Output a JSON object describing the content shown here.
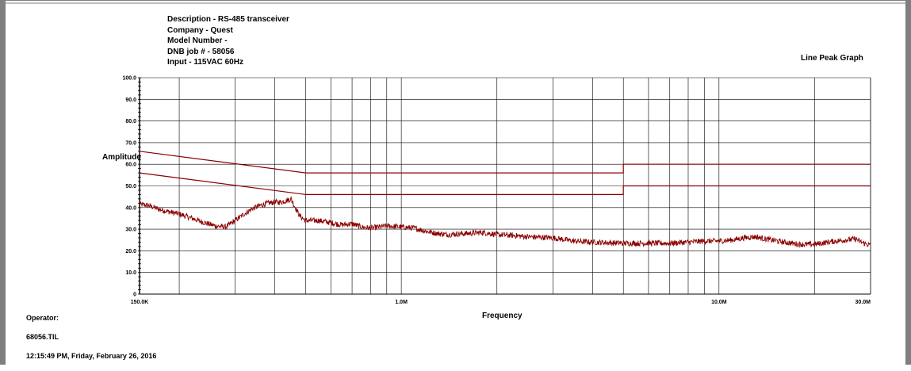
{
  "header": {
    "description": "Description - RS-485 transceiver",
    "company": "Company - Quest",
    "model": "Model Number -",
    "job": "DNB job # - 58056",
    "input": "Input - 115VAC 60Hz"
  },
  "footer": {
    "operator": "Operator:",
    "file": "68056.TIL",
    "datetime": "12:15:49 PM, Friday, February 26, 2016"
  },
  "colors": {
    "trace": "#8b0000",
    "grid": "#000000",
    "frame": "#7f7f7f"
  },
  "chart_data": {
    "type": "line",
    "title": "Line Peak Graph",
    "xlabel": "Frequency",
    "ylabel": "Amplitude",
    "x_scale": "log",
    "x_unit": "Hz",
    "xlim": [
      150000,
      30000000
    ],
    "ylim": [
      0,
      100
    ],
    "y_ticks": [
      "0",
      "10.0",
      "20.0",
      "30.0",
      "40.0",
      "50.0",
      "60.0",
      "70.0",
      "80.0",
      "90.0",
      "100.0"
    ],
    "x_tick_labels": [
      {
        "x": 150000,
        "label": "150.0K"
      },
      {
        "x": 1000000,
        "label": "1.0M"
      },
      {
        "x": 10000000,
        "label": "10.0M"
      },
      {
        "x": 30000000,
        "label": "30.0M"
      }
    ],
    "grid": true,
    "series": [
      {
        "role": "limit",
        "points": [
          [
            150000,
            66
          ],
          [
            500000,
            56
          ],
          [
            5000000,
            56
          ],
          [
            5000000,
            60
          ],
          [
            30000000,
            60
          ]
        ]
      },
      {
        "role": "limit",
        "points": [
          [
            150000,
            56
          ],
          [
            500000,
            46
          ],
          [
            5000000,
            46
          ],
          [
            5000000,
            50
          ],
          [
            30000000,
            50
          ]
        ]
      },
      {
        "role": "measurement",
        "points": [
          [
            150000,
            41.5
          ],
          [
            160000,
            41
          ],
          [
            170000,
            39.5
          ],
          [
            180000,
            38.5
          ],
          [
            200000,
            37
          ],
          [
            220000,
            35
          ],
          [
            240000,
            33
          ],
          [
            260000,
            31.5
          ],
          [
            280000,
            31
          ],
          [
            300000,
            34
          ],
          [
            320000,
            37
          ],
          [
            340000,
            39.5
          ],
          [
            360000,
            41
          ],
          [
            380000,
            42
          ],
          [
            400000,
            42.5
          ],
          [
            420000,
            42.5
          ],
          [
            440000,
            43.5
          ],
          [
            450000,
            44
          ],
          [
            460000,
            41
          ],
          [
            480000,
            36
          ],
          [
            500000,
            34
          ],
          [
            550000,
            34
          ],
          [
            600000,
            33
          ],
          [
            650000,
            32
          ],
          [
            700000,
            32.5
          ],
          [
            750000,
            31
          ],
          [
            800000,
            30.5
          ],
          [
            850000,
            31
          ],
          [
            900000,
            31.5
          ],
          [
            1000000,
            31
          ],
          [
            1100000,
            30.5
          ],
          [
            1200000,
            29
          ],
          [
            1300000,
            28
          ],
          [
            1400000,
            27.5
          ],
          [
            1600000,
            28
          ],
          [
            1800000,
            28.5
          ],
          [
            2000000,
            27.5
          ],
          [
            2300000,
            27
          ],
          [
            2500000,
            26.5
          ],
          [
            3000000,
            26
          ],
          [
            3500000,
            24.5
          ],
          [
            4000000,
            24
          ],
          [
            5000000,
            23.5
          ],
          [
            6000000,
            23.5
          ],
          [
            7000000,
            23.5
          ],
          [
            8000000,
            24
          ],
          [
            9000000,
            24.5
          ],
          [
            10000000,
            24.5
          ],
          [
            11000000,
            25
          ],
          [
            12000000,
            26
          ],
          [
            13000000,
            26.5
          ],
          [
            14000000,
            25.5
          ],
          [
            16000000,
            24
          ],
          [
            18000000,
            23
          ],
          [
            20000000,
            23
          ],
          [
            22000000,
            24
          ],
          [
            25000000,
            25
          ],
          [
            27000000,
            25.5
          ],
          [
            28000000,
            24
          ],
          [
            30000000,
            22.5
          ]
        ]
      }
    ]
  }
}
